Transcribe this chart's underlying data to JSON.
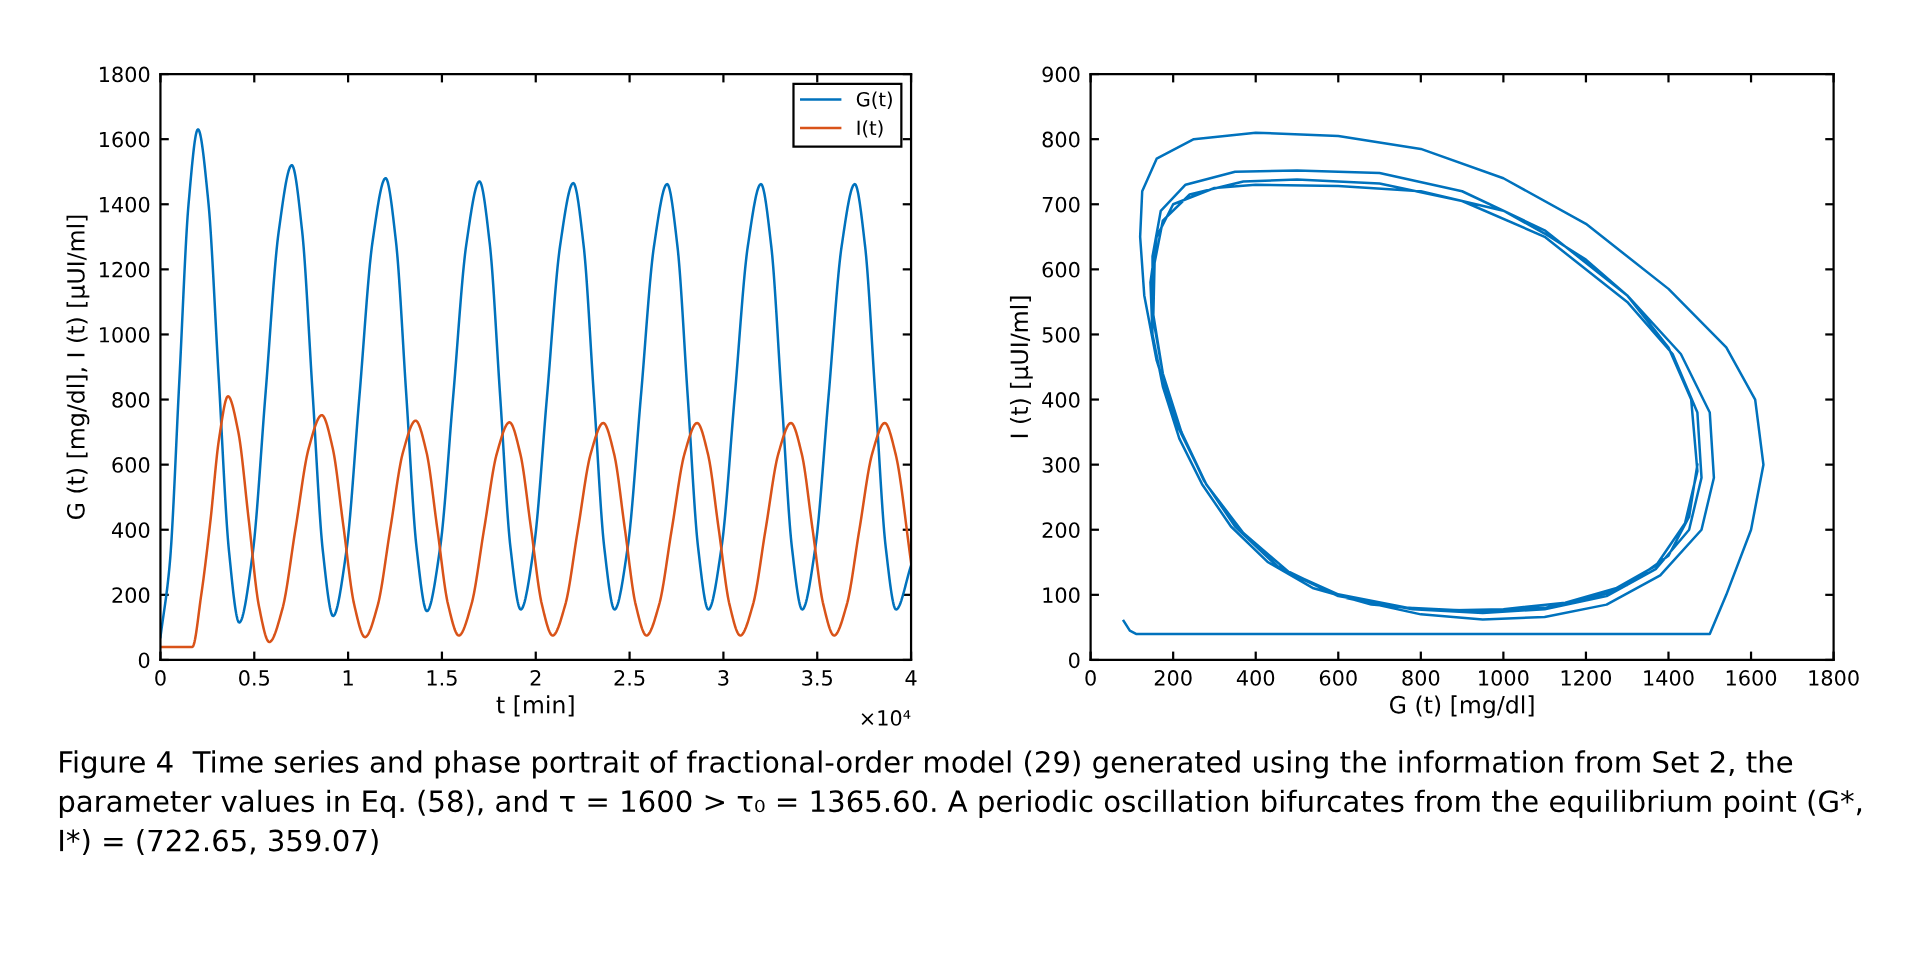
{
  "chart_data": [
    {
      "type": "line",
      "xlabel": "t [min]",
      "ylabel": "G (t) [mg/dl], I (t) [μUI/ml]",
      "xlim": [
        0,
        4
      ],
      "ylim": [
        0,
        1800
      ],
      "xticks": [
        0,
        0.5,
        1,
        1.5,
        2,
        2.5,
        3,
        3.5,
        4
      ],
      "yticks": [
        0,
        200,
        400,
        600,
        800,
        1000,
        1200,
        1400,
        1600,
        1800
      ],
      "legend": "top right",
      "annotations": [
        "×10⁴"
      ],
      "series": [
        {
          "name": "G(t)",
          "color": "#0072bd",
          "x": [
            0,
            0.05,
            0.1,
            0.15,
            0.2,
            0.255,
            0.31,
            0.365,
            0.42,
            0.49,
            0.56,
            0.63,
            0.7,
            0.755,
            0.81,
            0.865,
            0.92,
            0.99,
            1.06,
            1.13,
            1.2,
            1.255,
            1.31,
            1.365,
            1.42,
            1.49,
            1.56,
            1.63,
            1.7,
            1.755,
            1.81,
            1.865,
            1.92,
            1.99,
            2.06,
            2.13,
            2.2,
            2.255,
            2.31,
            2.365,
            2.42,
            2.49,
            2.56,
            2.63,
            2.7,
            2.755,
            2.81,
            2.865,
            2.92,
            2.99,
            3.06,
            3.13,
            3.2,
            3.255,
            3.31,
            3.365,
            3.42,
            3.49,
            3.56,
            3.63,
            3.7,
            3.755,
            3.81,
            3.865,
            3.92,
            4
          ],
          "values": [
            70,
            298,
            850,
            1402,
            1630,
            1409,
            872,
            336,
            115,
            320,
            818,
            1315,
            1520,
            1318,
            828,
            337,
            135,
            331,
            808,
            1284,
            1480,
            1286,
            815,
            344,
            150,
            343,
            810,
            1277,
            1470,
            1278,
            813,
            347,
            155,
            346,
            810,
            1274,
            1465,
            1274,
            810,
            346,
            155,
            346,
            808,
            1271,
            1462,
            1271,
            808,
            346,
            155,
            346,
            808,
            1271,
            1462,
            1271,
            808,
            346,
            155,
            346,
            808,
            1271,
            1462,
            1271,
            808,
            346,
            155,
            290
          ]
        },
        {
          "name": "I(t)",
          "color": "#d95319",
          "x": [
            0,
            0.17,
            0.2175,
            0.265,
            0.3125,
            0.36,
            0.415,
            0.47,
            0.525,
            0.58,
            0.65,
            0.72,
            0.79,
            0.86,
            0.9175,
            0.975,
            1.0325,
            1.09,
            1.1575,
            1.225,
            1.2925,
            1.36,
            1.4175,
            1.475,
            1.5325,
            1.59,
            1.6575,
            1.725,
            1.7925,
            1.86,
            1.9175,
            1.975,
            2.0325,
            2.09,
            2.1575,
            2.225,
            2.2925,
            2.36,
            2.4175,
            2.475,
            2.5325,
            2.59,
            2.6575,
            2.725,
            2.7925,
            2.86,
            2.9175,
            2.975,
            3.0325,
            3.09,
            3.1575,
            3.225,
            3.2925,
            3.36,
            3.4175,
            3.475,
            3.5325,
            3.59,
            3.6575,
            3.725,
            3.7925,
            3.86,
            3.9175,
            4
          ],
          "values": [
            40,
            40,
            200,
            420,
            680,
            810,
            700,
            433,
            165,
            55,
            157,
            404,
            650,
            752,
            652,
            411,
            170,
            70,
            167,
            403,
            638,
            735,
            639,
            405,
            171,
            75,
            171,
            403,
            634,
            730,
            634,
            403,
            171,
            75,
            170,
            402,
            633,
            728,
            633,
            402,
            170,
            75,
            170,
            402,
            633,
            728,
            633,
            402,
            170,
            75,
            170,
            402,
            633,
            728,
            633,
            402,
            170,
            75,
            170,
            402,
            633,
            728,
            633,
            300
          ]
        }
      ]
    },
    {
      "type": "line",
      "xlabel": "G (t) [mg/dl]",
      "ylabel": "I (t) [μUI/ml]",
      "xlim": [
        0,
        1800
      ],
      "ylim": [
        0,
        900
      ],
      "xticks": [
        0,
        200,
        400,
        600,
        800,
        1000,
        1200,
        1400,
        1600,
        1800
      ],
      "yticks": [
        0,
        100,
        200,
        300,
        400,
        500,
        600,
        700,
        800,
        900
      ],
      "annotations": [
        "Figure 4  Time series and phase portrait of fractional-order model (29) generated using the information from Set 2, the parameter values in Eq. (58), and τ = 1600 > τ₀ = 1365.60. A periodic oscillation bifurcates from the equilibrium point (G*, I*) = (722.65, 359.07)"
      ],
      "series": [
        {
          "color": "#0072bd",
          "x": [
            80,
            95,
            110,
            800,
            1500,
            1540,
            1600,
            1630,
            1610,
            1540,
            1400,
            1200,
            1000,
            800,
            600,
            400,
            250,
            160,
            125,
            120,
            130,
            160,
            210,
            280,
            370,
            480,
            620,
            800,
            950,
            1100,
            1250,
            1380,
            1480,
            1510,
            1500,
            1430,
            1300,
            1100,
            900,
            700,
            500,
            350,
            230,
            170,
            150,
            150,
            175,
            220,
            280,
            360,
            460,
            600,
            780,
            950,
            1100,
            1250,
            1370,
            1450,
            1480,
            1470,
            1410,
            1300,
            1100,
            900,
            700,
            500,
            370,
            240,
            175,
            155,
            152,
            175,
            220,
            275,
            350,
            450,
            590,
            770,
            930,
            1100,
            1250,
            1370,
            1440,
            1470,
            1455,
            1400,
            1300,
            1200,
            1100,
            1000,
            800,
            600,
            400,
            300,
            200,
            160,
            145,
            150,
            175,
            215,
            270,
            340,
            430,
            540,
            680,
            850,
            1000,
            1150,
            1300,
            1400,
            1450,
            1470
          ],
          "values": [
            60,
            45,
            40,
            40,
            40,
            100,
            200,
            300,
            400,
            480,
            570,
            670,
            740,
            785,
            805,
            810,
            800,
            770,
            720,
            650,
            560,
            460,
            360,
            270,
            195,
            135,
            95,
            70,
            62,
            66,
            85,
            130,
            200,
            280,
            380,
            470,
            560,
            660,
            720,
            748,
            752,
            750,
            730,
            690,
            620,
            530,
            440,
            350,
            270,
            200,
            140,
            98,
            78,
            72,
            78,
            98,
            140,
            200,
            280,
            380,
            470,
            550,
            650,
            705,
            732,
            738,
            735,
            715,
            675,
            610,
            530,
            440,
            350,
            275,
            205,
            145,
            102,
            80,
            75,
            80,
            102,
            145,
            210,
            290,
            400,
            480,
            560,
            615,
            655,
            690,
            720,
            728,
            730,
            725,
            700,
            650,
            580,
            500,
            420,
            340,
            270,
            205,
            150,
            110,
            85,
            76,
            78,
            88,
            115,
            160,
            220,
            300
          ]
        }
      ]
    }
  ]
}
